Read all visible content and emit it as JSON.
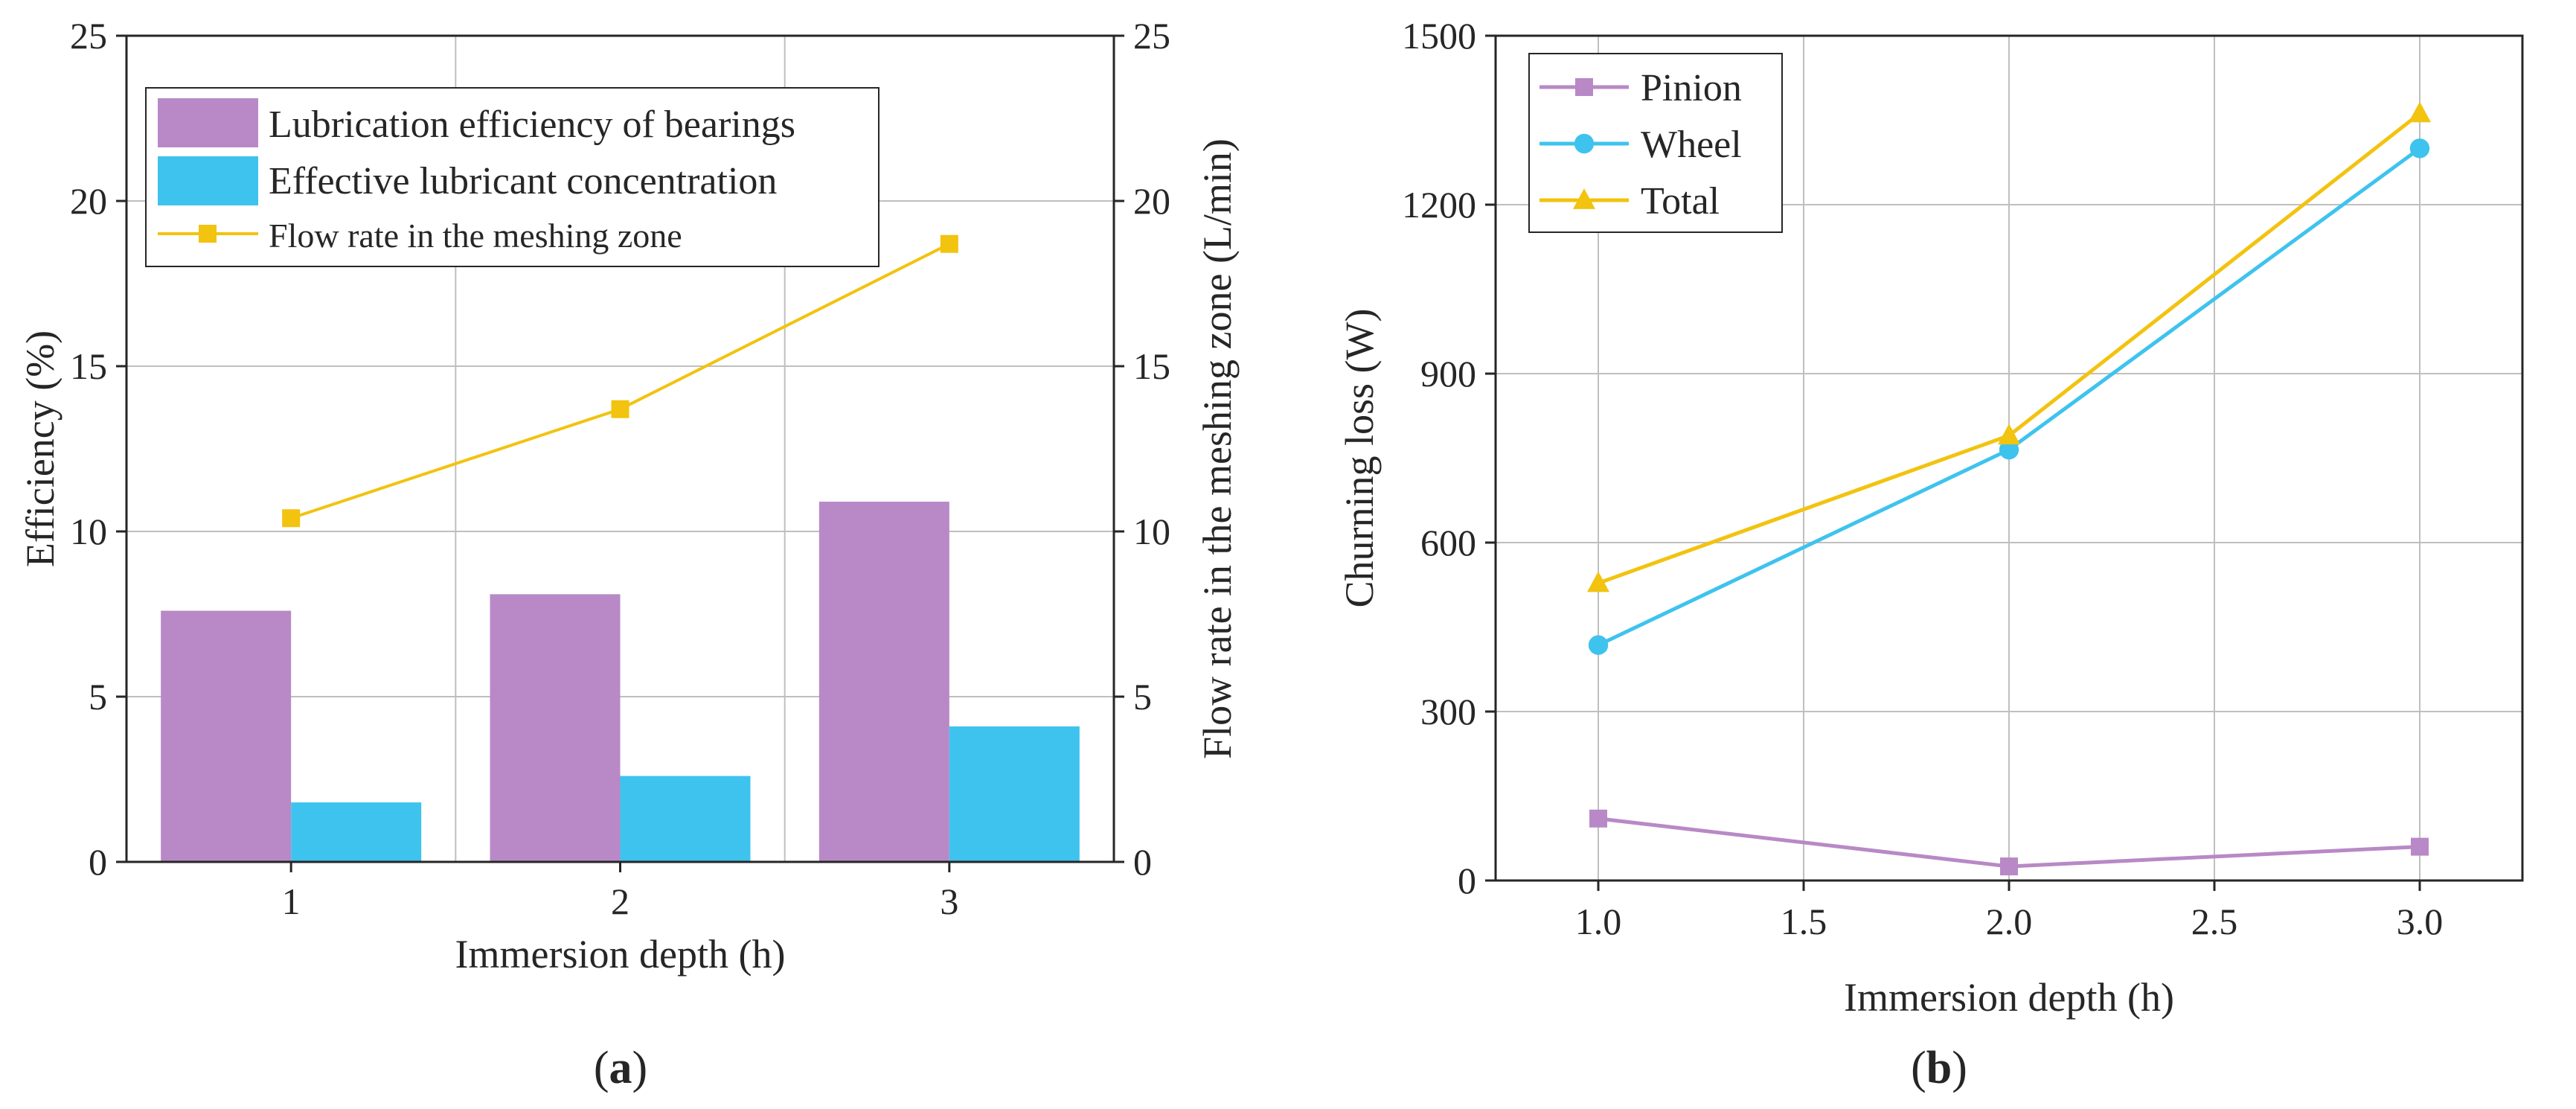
{
  "colors": {
    "purple": "#b889c6",
    "blue": "#3ec3ee",
    "yellow": "#f2c30f",
    "grid": "#bfbfbf",
    "axis": "#262626"
  },
  "panels": {
    "a": {
      "label_open": "(",
      "label_letter": "a",
      "label_close": ")"
    },
    "b": {
      "label_open": "(",
      "label_letter": "b",
      "label_close": ")"
    }
  },
  "chart_data": [
    {
      "id": "a",
      "type": "bar",
      "title": "",
      "xlabel": "Immersion depth (h)",
      "ylabel": "Efficiency (%)",
      "y2label": "Flow rate in the meshing zone (L/min)",
      "categories": [
        "1",
        "2",
        "3"
      ],
      "ylim": [
        0,
        25
      ],
      "y2lim": [
        0,
        25
      ],
      "yticks": [
        "0",
        "5",
        "10",
        "15",
        "20",
        "25"
      ],
      "y2ticks": [
        "0",
        "5",
        "10",
        "15",
        "20",
        "25"
      ],
      "grid": true,
      "legend_position": "top-left",
      "series": [
        {
          "name": "Lubrication efficiency of bearings",
          "kind": "bar",
          "color": "#b889c6",
          "values": [
            7.6,
            8.1,
            10.9
          ]
        },
        {
          "name": "Effective lubricant concentration",
          "kind": "bar",
          "color": "#3ec3ee",
          "values": [
            1.8,
            2.6,
            4.1
          ]
        },
        {
          "name": "Flow rate in the meshing zone",
          "kind": "line",
          "marker": "square",
          "axis": "right",
          "color": "#f2c30f",
          "values": [
            10.4,
            13.7,
            18.7
          ]
        }
      ]
    },
    {
      "id": "b",
      "type": "line",
      "title": "",
      "xlabel": "Immersion depth (h)",
      "ylabel": "Churning loss (W)",
      "x": [
        1.0,
        2.0,
        3.0
      ],
      "xlim": [
        0.75,
        3.25
      ],
      "ylim": [
        0,
        1500
      ],
      "xticks": [
        "1.0",
        "1.5",
        "2.0",
        "2.5",
        "3.0"
      ],
      "yticks": [
        "0",
        "300",
        "600",
        "900",
        "1200",
        "1500"
      ],
      "grid": true,
      "legend_position": "top-left",
      "series": [
        {
          "name": "Pinion",
          "marker": "square",
          "color": "#b889c6",
          "values": [
            110,
            25,
            60
          ]
        },
        {
          "name": "Wheel",
          "marker": "circle",
          "color": "#3ec3ee",
          "values": [
            418,
            765,
            1300
          ]
        },
        {
          "name": "Total",
          "marker": "triangle",
          "color": "#f2c30f",
          "values": [
            528,
            790,
            1362
          ]
        }
      ]
    }
  ]
}
